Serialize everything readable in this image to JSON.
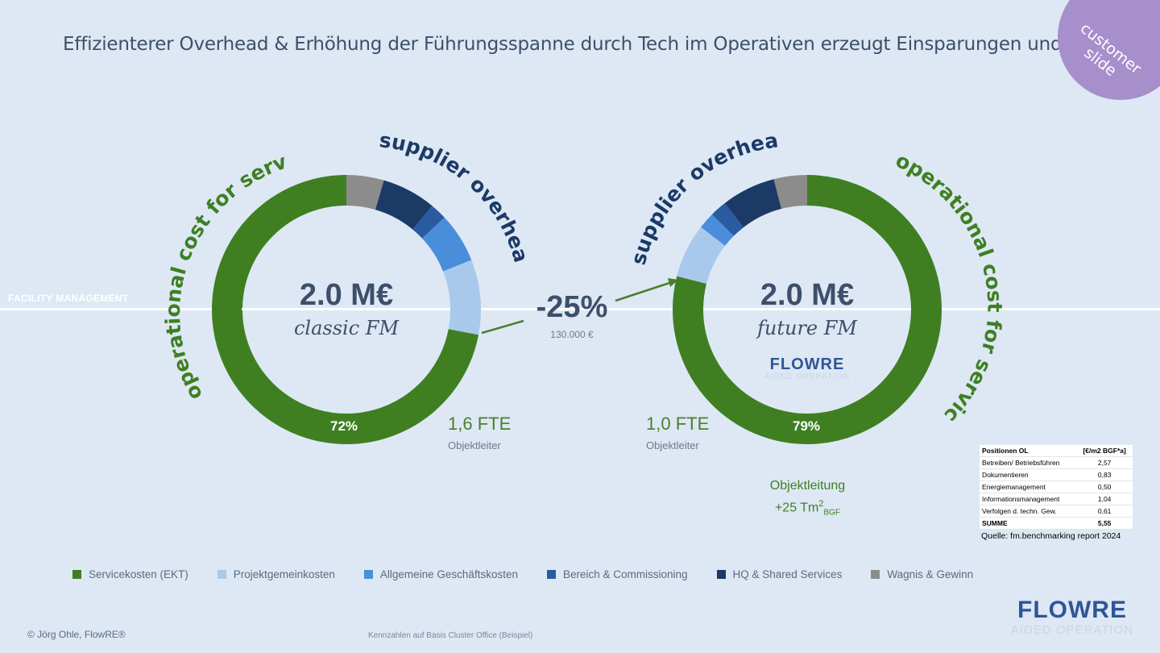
{
  "title": "Effizienterer Overhead & Erhöhung der Führungsspanne durch Tech im Operativen erzeugt Einsparungen und Qualität",
  "badge": "customer slide",
  "fm_label": "FACILITY MANAGEMENT",
  "delta": {
    "value": "-25%",
    "amount": "130.000 €"
  },
  "arc_labels": {
    "left_outer": "operational cost for service",
    "left_top": "supplier overhead",
    "right_top": "supplier overhead",
    "right_outer": "operational cost for service"
  },
  "left_chart": {
    "value": "2.0 M€",
    "label": "classic FM",
    "pct": "72%",
    "fte": "1,6 FTE",
    "fte_role": "Objektleiter"
  },
  "right_chart": {
    "value": "2.0 M€",
    "label": "future FM",
    "pct": "79%",
    "fte": "1,0 FTE",
    "fte_role": "Objektleiter",
    "logo": "FLOWRE",
    "logo_sub": "AIDED OPERATION"
  },
  "objektleitung": {
    "line1": "Objektleitung",
    "line2": "+25 Tm",
    "sup": "2",
    "sub": "BGF"
  },
  "table": {
    "header": [
      "Positionen OL",
      "[€/m2 BGF*a]"
    ],
    "rows": [
      [
        "Betreiben/ Betriebsführen",
        "2,57"
      ],
      [
        "Dokumentieren",
        "0,83"
      ],
      [
        "Energiemanagement",
        "0,50"
      ],
      [
        "Informationsmanagement",
        "1,04"
      ],
      [
        "Verfolgen d. techn. Gew.",
        "0,61"
      ]
    ],
    "sum": [
      "SUMME",
      "5,55"
    ],
    "source": "Quelle: fm.benchmarking report 2024"
  },
  "legend": [
    {
      "label": "Servicekosten (EKT)",
      "color": "#3f7f22"
    },
    {
      "label": "Projektgemeinkosten",
      "color": "#a9c9ec"
    },
    {
      "label": "Allgemeine Geschäftskosten",
      "color": "#4a8edb"
    },
    {
      "label": "Bereich & Commissioning",
      "color": "#2a5aa0"
    },
    {
      "label": "HQ & Shared Services",
      "color": "#1c3a66"
    },
    {
      "label": "Wagnis & Gewinn",
      "color": "#8c8c8c"
    }
  ],
  "footer": {
    "copyright": "© Jörg Ohle, FlowRE®",
    "note": "Kennzahlen auf Basis Cluster Office (Beispiel)"
  },
  "corner_logo": {
    "name": "FLOWRE",
    "sub": "AIDED OPERATION"
  },
  "chart_data": [
    {
      "type": "pie",
      "title": "classic FM",
      "categories": [
        "Servicekosten (EKT)",
        "Projektgemeinkosten",
        "Allgemeine Geschäftskosten",
        "Bereich & Commissioning",
        "HQ & Shared Services",
        "Wagnis & Gewinn"
      ],
      "values": [
        72,
        9,
        6,
        2,
        6.5,
        4.5
      ],
      "total": "2.0 M€"
    },
    {
      "type": "pie",
      "title": "future FM",
      "categories": [
        "Servicekosten (EKT)",
        "Projektgemeinkosten",
        "Allgemeine Geschäftskosten",
        "Bereich & Commissioning",
        "HQ & Shared Services",
        "Wagnis & Gewinn"
      ],
      "values": [
        79,
        6.5,
        2,
        2,
        6.5,
        4
      ],
      "total": "2.0 M€"
    }
  ]
}
